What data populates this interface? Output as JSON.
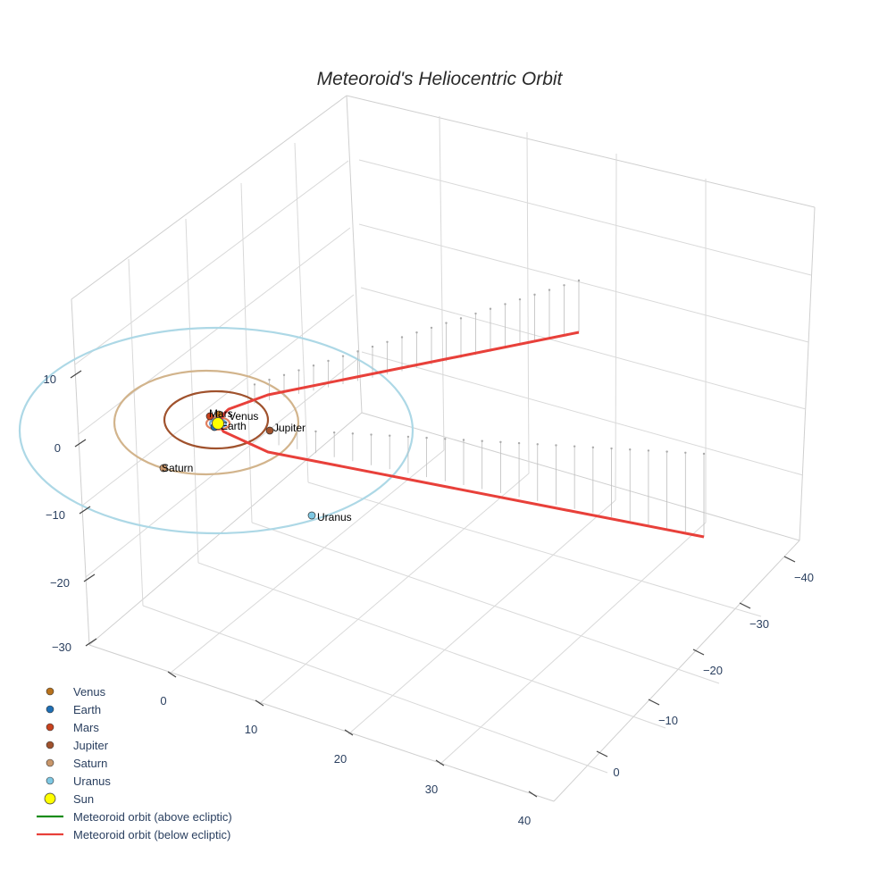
{
  "chart_data": {
    "type": "scatter3d",
    "title": "Meteoroid's Heliocentric Orbit",
    "axes": {
      "z_ticks": [
        "10",
        "0",
        "−10",
        "−20",
        "−30"
      ],
      "x_ticks": [
        "0",
        "10",
        "20",
        "30",
        "40"
      ],
      "y_ticks": [
        "−40",
        "−30",
        "−20",
        "−10",
        "0"
      ]
    },
    "planets": [
      {
        "name": "Venus",
        "label": "Venus",
        "color": "#b8721c",
        "orbit_color": "#e0b070"
      },
      {
        "name": "Earth",
        "label": "Earth",
        "color": "#1f6fb4",
        "orbit_color": "#6aa7d8"
      },
      {
        "name": "Mars",
        "label": "Mars",
        "color": "#c8421e",
        "orbit_color": "#e08060"
      },
      {
        "name": "Jupiter",
        "label": "Jupiter",
        "color": "#a0522d",
        "orbit_color": "#a0522d"
      },
      {
        "name": "Saturn",
        "label": "Saturn",
        "color": "#c8966a",
        "orbit_color": "#d2b48c"
      },
      {
        "name": "Uranus",
        "label": "Uranus",
        "color": "#7ec8e3",
        "orbit_color": "#add8e6"
      }
    ],
    "sun": {
      "name": "Sun",
      "color": "#ffff00"
    },
    "meteoroid": {
      "above_label": "Meteoroid orbit (above ecliptic)",
      "above_color": "#1a8c1a",
      "below_label": "Meteoroid orbit (below ecliptic)",
      "below_color": "#e8403a"
    },
    "legend": [
      {
        "label": "Venus",
        "kind": "marker",
        "color": "#b8721c"
      },
      {
        "label": "Earth",
        "kind": "marker",
        "color": "#1f6fb4"
      },
      {
        "label": "Mars",
        "kind": "marker",
        "color": "#c8421e"
      },
      {
        "label": "Jupiter",
        "kind": "marker",
        "color": "#a0522d"
      },
      {
        "label": "Saturn",
        "kind": "marker",
        "color": "#c8966a"
      },
      {
        "label": "Uranus",
        "kind": "marker",
        "color": "#7ec8e3"
      },
      {
        "label": "Sun",
        "kind": "sun",
        "color": "#ffff00"
      },
      {
        "label": "Meteoroid orbit (above ecliptic)",
        "kind": "line",
        "color": "#1a8c1a"
      },
      {
        "label": "Meteoroid orbit (below ecliptic)",
        "kind": "line",
        "color": "#e8403a"
      }
    ],
    "legend_position": "bottom-left"
  }
}
